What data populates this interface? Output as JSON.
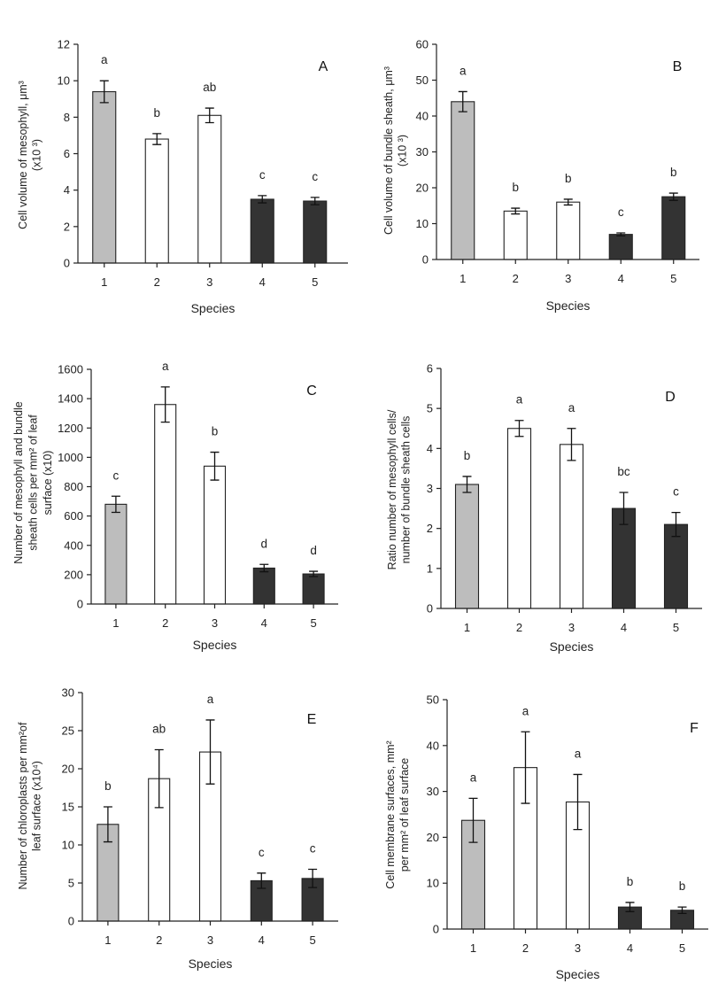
{
  "colors": {
    "gray": "#bdbdbd",
    "white": "#ffffff",
    "dark": "#333333"
  },
  "chart_data": [
    {
      "type": "bar",
      "panel": "A",
      "categories": [
        "1",
        "2",
        "3",
        "4",
        "5"
      ],
      "xlabel": "Species",
      "ylabel_lines": [
        "Cell volume of mesophyll, μm³",
        "(x10 ³)"
      ],
      "ylim": [
        0,
        12
      ],
      "yticks": [
        "0",
        "2",
        "4",
        "6",
        "8",
        "10",
        "12"
      ],
      "values": [
        9.4,
        6.8,
        8.1,
        3.5,
        3.4
      ],
      "errors": [
        0.6,
        0.3,
        0.4,
        0.2,
        0.2
      ],
      "sig_letters": [
        "a",
        "b",
        "ab",
        "c",
        "c"
      ],
      "bar_colors": [
        "gray",
        "white",
        "white",
        "dark",
        "dark"
      ]
    },
    {
      "type": "bar",
      "panel": "B",
      "categories": [
        "1",
        "2",
        "3",
        "4",
        "5"
      ],
      "xlabel": "Species",
      "ylabel_lines": [
        "Cell volume of bundle sheath, μm³",
        "(x10 ³)"
      ],
      "ylim": [
        0,
        60
      ],
      "yticks": [
        "0",
        "10",
        "20",
        "30",
        "40",
        "50",
        "60"
      ],
      "values": [
        44,
        13.5,
        16,
        7,
        17.5
      ],
      "errors": [
        2.8,
        0.8,
        0.8,
        0.4,
        1.0
      ],
      "sig_letters": [
        "a",
        "b",
        "b",
        "c",
        "b"
      ],
      "bar_colors": [
        "gray",
        "white",
        "white",
        "dark",
        "dark"
      ]
    },
    {
      "type": "bar",
      "panel": "C",
      "categories": [
        "1",
        "2",
        "3",
        "4",
        "5"
      ],
      "xlabel": "Species",
      "ylabel_lines": [
        "Number of mesophyll and bundle",
        "sheath cells per mm² of leaf",
        "surface (x10)"
      ],
      "ylim": [
        0,
        1600
      ],
      "yticks": [
        "0",
        "200",
        "400",
        "600",
        "800",
        "1000",
        "1200",
        "1400",
        "1600"
      ],
      "values": [
        680,
        1360,
        940,
        245,
        205
      ],
      "errors": [
        55,
        120,
        95,
        25,
        18
      ],
      "sig_letters": [
        "c",
        "a",
        "b",
        "d",
        "d"
      ],
      "bar_colors": [
        "gray",
        "white",
        "white",
        "dark",
        "dark"
      ]
    },
    {
      "type": "bar",
      "panel": "D",
      "categories": [
        "1",
        "2",
        "3",
        "4",
        "5"
      ],
      "xlabel": "Species",
      "ylabel_lines": [
        "Ratio number of mesophyll cells/",
        "number of bundle sheath cells"
      ],
      "ylim": [
        0,
        6
      ],
      "yticks": [
        "0",
        "1",
        "2",
        "3",
        "4",
        "5",
        "6"
      ],
      "values": [
        3.1,
        4.5,
        4.1,
        2.5,
        2.1
      ],
      "errors": [
        0.2,
        0.2,
        0.4,
        0.4,
        0.3
      ],
      "sig_letters": [
        "b",
        "a",
        "a",
        "bc",
        "c"
      ],
      "bar_colors": [
        "gray",
        "white",
        "white",
        "dark",
        "dark"
      ]
    },
    {
      "type": "bar",
      "panel": "E",
      "categories": [
        "1",
        "2",
        "3",
        "4",
        "5"
      ],
      "xlabel": "Species",
      "ylabel_lines": [
        "Number of chloroplasts per mm²of",
        "leaf surface (x10⁴)"
      ],
      "ylim": [
        0,
        30
      ],
      "yticks": [
        "0",
        "5",
        "10",
        "15",
        "20",
        "25",
        "30"
      ],
      "values": [
        12.7,
        18.7,
        22.2,
        5.3,
        5.6
      ],
      "errors": [
        2.3,
        3.8,
        4.2,
        1.0,
        1.2
      ],
      "sig_letters": [
        "b",
        "ab",
        "a",
        "c",
        "c"
      ],
      "bar_colors": [
        "gray",
        "white",
        "white",
        "dark",
        "dark"
      ]
    },
    {
      "type": "bar",
      "panel": "F",
      "categories": [
        "1",
        "2",
        "3",
        "4",
        "5"
      ],
      "xlabel": "Species",
      "ylabel_lines": [
        "Cell  membrane surfaces, mm²",
        "per mm² of leaf surface"
      ],
      "ylim": [
        0,
        50
      ],
      "yticks": [
        "0",
        "10",
        "20",
        "30",
        "40",
        "50"
      ],
      "values": [
        23.7,
        35.2,
        27.7,
        4.8,
        4.1
      ],
      "errors": [
        4.8,
        7.8,
        6.0,
        1.0,
        0.7
      ],
      "sig_letters": [
        "a",
        "a",
        "a",
        "b",
        "b"
      ],
      "bar_colors": [
        "gray",
        "white",
        "white",
        "dark",
        "dark"
      ]
    }
  ]
}
